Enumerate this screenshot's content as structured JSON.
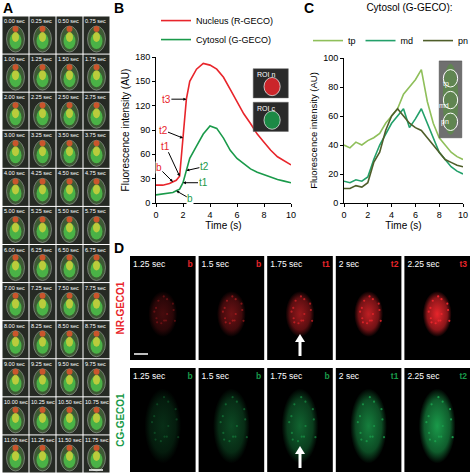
{
  "panel_a": {
    "label": "A",
    "frames": [
      "0.00 sec",
      "0.25 sec",
      "0.50 sec",
      "0.75 sec",
      "1.00 sec",
      "1.25 sec",
      "1.50 sec",
      "1.75 sec",
      "2.00 sec",
      "2.25 sec",
      "2.50 sec",
      "2.75 sec",
      "3.00 sec",
      "3.25 sec",
      "3.50 sec",
      "3.75 sec",
      "4.00 sec",
      "4.25 sec",
      "4.50 sec",
      "4.75 sec",
      "5.00 sec",
      "5.25 sec",
      "5.50 sec",
      "5.75 sec",
      "6.00 sec",
      "6.25 sec",
      "6.50 sec",
      "6.75 sec",
      "7.00 sec",
      "7.25 sec",
      "7.50 sec",
      "7.75 sec",
      "8.00 sec",
      "8.25 sec",
      "8.50 sec",
      "8.75 sec",
      "9.00 sec",
      "9.25 sec",
      "9.50 sec",
      "9.75 sec",
      "10.00 sec",
      "10.25 sec",
      "10.50 sec",
      "10.75 sec",
      "11.00 sec",
      "11.25 sec",
      "11.50 sec",
      "11.75 sec"
    ]
  },
  "chart_data": [
    {
      "label": "B",
      "type": "line",
      "x": [
        0,
        0.5,
        1,
        1.25,
        1.5,
        1.75,
        2,
        2.25,
        2.5,
        3,
        3.5,
        4,
        4.5,
        5,
        5.5,
        6,
        6.5,
        7,
        7.5,
        8,
        8.5,
        9,
        9.5,
        10
      ],
      "series": [
        {
          "name": "Nucleus (R-GECO)",
          "color": "#e8252b",
          "values": [
            22,
            22,
            24,
            26,
            28,
            33,
            80,
            128,
            150,
            165,
            172,
            170,
            165,
            155,
            140,
            125,
            110,
            98,
            85,
            75,
            65,
            57,
            52,
            47
          ]
        },
        {
          "name": "Cytosol (G-GECO)",
          "color": "#1a9a4a",
          "values": [
            10,
            11,
            12,
            13,
            15,
            17,
            25,
            40,
            55,
            70,
            85,
            95,
            92,
            80,
            65,
            55,
            48,
            42,
            38,
            35,
            32,
            29,
            27,
            25
          ]
        }
      ],
      "xlabel": "Time (s)",
      "ylabel": "Fluorescence intensity (AU)",
      "xlim": [
        0,
        10
      ],
      "xticks": [
        0,
        2,
        4,
        6,
        8,
        10
      ],
      "ylim": [
        0,
        180
      ],
      "yticks": [
        0,
        30,
        60,
        90,
        120,
        150,
        180
      ],
      "grid": false,
      "legend": "top",
      "annotations": [
        {
          "text": "b",
          "x": 1.25,
          "y": 26,
          "color": "#e8252b"
        },
        {
          "text": "t1",
          "x": 1.75,
          "y": 33,
          "color": "#e8252b"
        },
        {
          "text": "t2",
          "x": 2,
          "y": 80,
          "color": "#e8252b"
        },
        {
          "text": "t3",
          "x": 2.25,
          "y": 128,
          "color": "#e8252b"
        },
        {
          "text": "b",
          "x": 1.5,
          "y": 15,
          "color": "#1a9a4a"
        },
        {
          "text": "t1",
          "x": 2,
          "y": 25,
          "color": "#1a9a4a"
        },
        {
          "text": "t2",
          "x": 2.25,
          "y": 40,
          "color": "#1a9a4a"
        }
      ],
      "insets": [
        {
          "text": "ROI n",
          "color": "#e8252b"
        },
        {
          "text": "ROI c",
          "color": "#1a9a4a"
        }
      ]
    },
    {
      "label": "C",
      "type": "line",
      "title": "Cytosol (G-GECO):",
      "x": [
        0,
        0.5,
        1,
        1.5,
        2,
        2.5,
        3,
        3.5,
        4,
        4.5,
        5,
        5.5,
        6,
        6.5,
        7,
        7.5,
        8,
        8.5,
        9,
        9.5,
        10
      ],
      "series": [
        {
          "name": "tp",
          "color": "#8fbf5a",
          "values": [
            40,
            38,
            42,
            40,
            43,
            45,
            48,
            55,
            60,
            65,
            75,
            80,
            85,
            92,
            70,
            55,
            45,
            40,
            35,
            32,
            30
          ]
        },
        {
          "name": "md",
          "color": "#23a06a",
          "values": [
            15,
            14,
            16,
            15,
            18,
            30,
            40,
            48,
            55,
            60,
            65,
            52,
            58,
            65,
            55,
            45,
            35,
            30,
            25,
            22,
            20
          ]
        },
        {
          "name": "pn",
          "color": "#4f5e2a",
          "values": [
            10,
            10,
            12,
            11,
            14,
            28,
            35,
            50,
            60,
            65,
            60,
            55,
            52,
            50,
            45,
            40,
            35,
            30,
            28,
            26,
            25
          ]
        }
      ],
      "xlabel": "Time (s)",
      "ylabel": "Fluorescence intensity (AU)",
      "xlim": [
        0,
        10
      ],
      "xticks": [
        0,
        2,
        4,
        6,
        8,
        10
      ],
      "ylim": [
        0,
        100
      ],
      "yticks": [
        0,
        20,
        40,
        60,
        80,
        100
      ],
      "grid": false,
      "legend": "top"
    }
  ],
  "panel_d": {
    "label": "D",
    "rows": [
      {
        "name": "NR-GECO1",
        "color": "#e8252b",
        "frames": [
          {
            "time": "1.25 sec",
            "mark": "b"
          },
          {
            "time": "1.5 sec",
            "mark": "b"
          },
          {
            "time": "1.75 sec",
            "mark": "t1",
            "arrow": true
          },
          {
            "time": "2 sec",
            "mark": "t2"
          },
          {
            "time": "2.25 sec",
            "mark": "t3"
          }
        ]
      },
      {
        "name": "CG-GECO1",
        "color": "#1a9a4a",
        "frames": [
          {
            "time": "1.25 sec",
            "mark": "b"
          },
          {
            "time": "1.5 sec",
            "mark": "b"
          },
          {
            "time": "1.75 sec",
            "mark": "b",
            "arrow": true
          },
          {
            "time": "2 sec",
            "mark": "t1"
          },
          {
            "time": "2.25 sec",
            "mark": "t2"
          }
        ]
      }
    ]
  }
}
